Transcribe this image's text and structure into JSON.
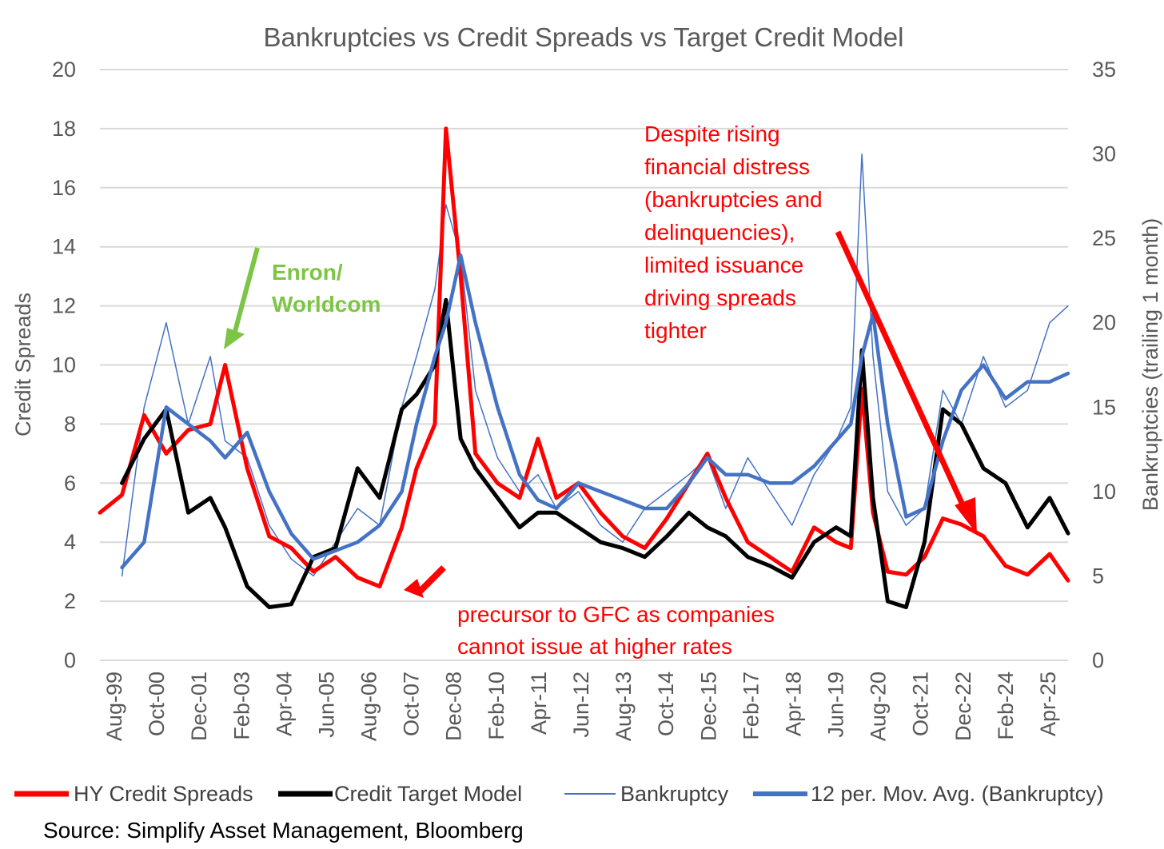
{
  "colors": {
    "hy": "#ff0000",
    "model": "#000000",
    "bk": "#4472c4",
    "bkma": "#4472c4",
    "grid": "#d9d9d9",
    "axis_text": "#595959",
    "annot_green": "#7cc545",
    "annot_red": "#ff0000"
  },
  "chart_data": {
    "type": "line",
    "title": "Bankruptcies vs Credit Spreads vs Target Credit Model",
    "xlabel": "",
    "ylabel": "Credit Spreads",
    "y2label": "Bankruptcies (trailing 1 month)",
    "ylim": [
      0,
      20
    ],
    "y2lim": [
      0,
      35
    ],
    "yticks": [
      "0",
      "2",
      "4",
      "6",
      "8",
      "10",
      "12",
      "14",
      "16",
      "18",
      "20"
    ],
    "y2ticks": [
      "0",
      "5",
      "10",
      "15",
      "20",
      "25",
      "30",
      "35"
    ],
    "xticks": [
      "Aug-99",
      "Oct-00",
      "Dec-01",
      "Feb-03",
      "Apr-04",
      "Jun-05",
      "Aug-06",
      "Oct-07",
      "Dec-08",
      "Feb-10",
      "Apr-11",
      "Jun-12",
      "Aug-13",
      "Oct-14",
      "Dec-15",
      "Feb-17",
      "Apr-18",
      "Jun-19",
      "Aug-20",
      "Oct-21",
      "Dec-22",
      "Feb-24",
      "Apr-25"
    ],
    "grid": true,
    "legend_position": "bottom",
    "x": [
      1999.6,
      2000.2,
      2000.8,
      2001.4,
      2002.0,
      2002.6,
      2003.0,
      2003.6,
      2004.2,
      2004.8,
      2005.4,
      2006.0,
      2006.6,
      2007.2,
      2007.8,
      2008.2,
      2008.7,
      2009.0,
      2009.4,
      2009.8,
      2010.4,
      2011.0,
      2011.5,
      2012.0,
      2012.6,
      2013.2,
      2013.8,
      2014.4,
      2015.0,
      2015.6,
      2016.1,
      2016.6,
      2017.2,
      2017.8,
      2018.4,
      2019.0,
      2019.6,
      2020.0,
      2020.3,
      2020.6,
      2021.0,
      2021.5,
      2022.0,
      2022.5,
      2023.0,
      2023.6,
      2024.2,
      2024.8,
      2025.4,
      2025.9
    ],
    "series": [
      {
        "name": "HY Credit Spreads",
        "axis": "left",
        "values": [
          5.0,
          5.6,
          8.3,
          7.0,
          7.8,
          8.0,
          10.0,
          6.5,
          4.2,
          3.8,
          3.0,
          3.5,
          2.8,
          2.5,
          4.5,
          6.5,
          8.0,
          18.0,
          13.0,
          7.0,
          6.0,
          5.5,
          7.5,
          5.5,
          6.0,
          5.0,
          4.2,
          3.8,
          4.8,
          6.0,
          7.0,
          5.5,
          4.0,
          3.5,
          3.0,
          4.5,
          4.0,
          3.8,
          9.2,
          5.0,
          3.0,
          2.9,
          3.5,
          4.8,
          4.6,
          4.2,
          3.2,
          2.9,
          3.6,
          2.7
        ]
      },
      {
        "name": "Credit Target Model",
        "axis": "left",
        "values": [
          null,
          6.0,
          7.5,
          8.5,
          5.0,
          5.5,
          4.5,
          2.5,
          1.8,
          1.9,
          3.5,
          3.8,
          6.5,
          5.5,
          8.5,
          9.0,
          10.0,
          12.2,
          7.5,
          6.5,
          5.5,
          4.5,
          5.0,
          5.0,
          4.5,
          4.0,
          3.8,
          3.5,
          4.2,
          5.0,
          4.5,
          4.2,
          3.5,
          3.2,
          2.8,
          4.0,
          4.5,
          4.2,
          10.5,
          5.5,
          2.0,
          1.8,
          4.0,
          8.5,
          8.0,
          6.5,
          6.0,
          4.5,
          5.5,
          4.3
        ]
      },
      {
        "name": "Bankruptcy",
        "axis": "right",
        "values": [
          null,
          5.0,
          15.0,
          20.0,
          14.0,
          18.0,
          13.0,
          12.0,
          8.0,
          6.0,
          5.0,
          7.0,
          9.0,
          8.0,
          15.0,
          18.0,
          22.0,
          27.0,
          24.0,
          16.0,
          12.0,
          10.0,
          11.0,
          9.0,
          10.0,
          8.0,
          7.0,
          9.0,
          10.0,
          11.0,
          12.0,
          9.0,
          12.0,
          10.0,
          8.0,
          11.0,
          13.0,
          15.0,
          30.0,
          18.0,
          10.0,
          8.0,
          9.0,
          16.0,
          14.0,
          18.0,
          15.0,
          16.0,
          20.0,
          21.0
        ]
      },
      {
        "name": "12 per. Mov. Avg. (Bankruptcy)",
        "axis": "right",
        "values": [
          null,
          5.5,
          7.0,
          15.0,
          14.0,
          13.0,
          12.0,
          13.5,
          10.0,
          7.5,
          6.0,
          6.5,
          7.0,
          8.0,
          10.0,
          14.0,
          18.0,
          20.0,
          24.0,
          20.0,
          15.0,
          11.0,
          9.5,
          9.0,
          10.5,
          10.0,
          9.5,
          9.0,
          9.0,
          10.5,
          12.0,
          11.0,
          11.0,
          10.5,
          10.5,
          11.5,
          13.0,
          14.0,
          18.0,
          20.5,
          14.0,
          8.5,
          9.0,
          13.0,
          16.0,
          17.5,
          15.5,
          16.5,
          16.5,
          17.0
        ]
      }
    ],
    "annotations": [
      {
        "text": "Enron/ Worldcom",
        "lines": [
          "Enron/",
          "Worldcom"
        ],
        "color": "green"
      },
      {
        "text": "precursor to GFC as companies cannot issue at higher rates",
        "lines": [
          "precursor to GFC as companies",
          "cannot issue at higher rates"
        ],
        "color": "red"
      },
      {
        "text": "Despite rising financial distress (bankruptcies and delinquencies), limited issuance driving spreads tighter",
        "lines": [
          "Despite rising",
          "financial distress",
          "(bankruptcies and",
          "delinquencies),",
          "limited issuance",
          "driving spreads",
          "tighter"
        ],
        "color": "red"
      }
    ]
  },
  "legend": {
    "items": [
      {
        "label": "HY Credit Spreads",
        "style": "thick-red"
      },
      {
        "label": "Credit Target Model",
        "style": "thick-black"
      },
      {
        "label": "Bankruptcy",
        "style": "thin-blue"
      },
      {
        "label": "12 per. Mov. Avg. (Bankruptcy)",
        "style": "thick-blue"
      }
    ]
  },
  "source": "Source: Simplify Asset Management, Bloomberg"
}
